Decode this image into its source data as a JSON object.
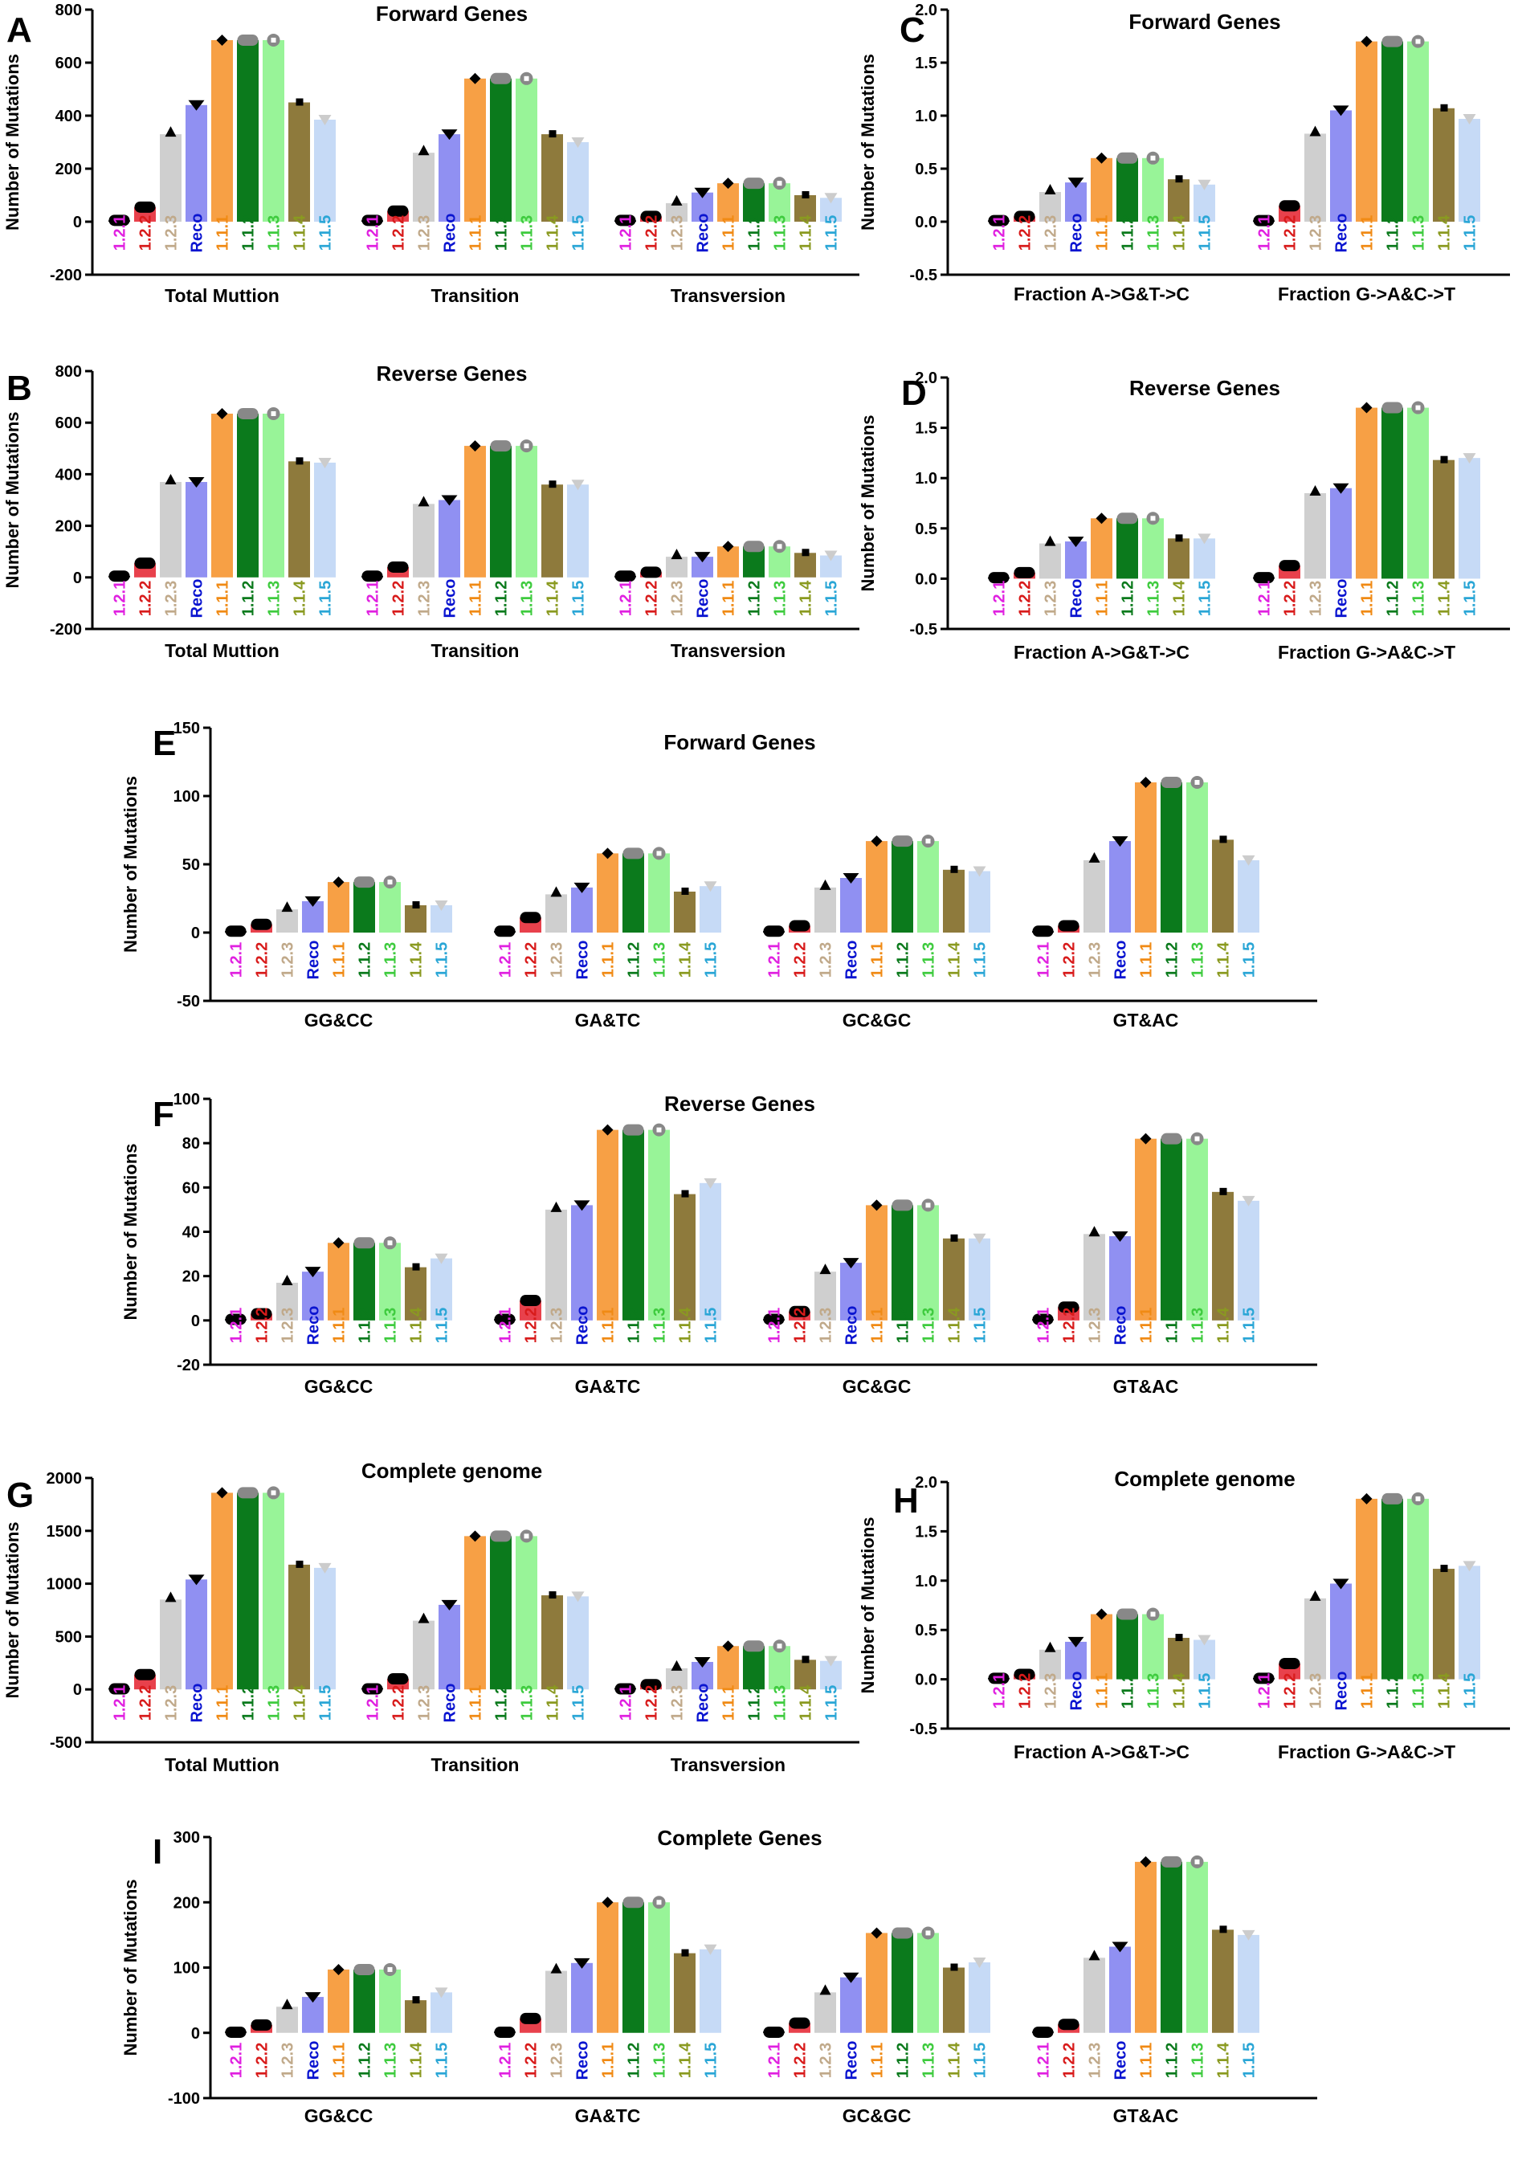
{
  "figure": {
    "category_labels": [
      "1.2.1",
      "1.2.2",
      "1.2.3",
      "Reco",
      "1.1.1",
      "1.1.2",
      "1.1.3",
      "1.1.4",
      "1.1.5"
    ],
    "colors": {
      "bars": [
        "#000000",
        "#e8414c",
        "#cfcfcf",
        "#9090f2",
        "#f7a045",
        "#0b7a1c",
        "#98f498",
        "#8e7a3c",
        "#c6daf6"
      ],
      "labels": [
        "#e020e0",
        "#d81b1b",
        "#c0a98a",
        "#0a14d0",
        "#f08a14",
        "#0b7a1c",
        "#3ecb3e",
        "#8a9a20",
        "#2aa6d6"
      ],
      "markers": [
        "#000000",
        "#000000",
        "#000000",
        "#000000",
        "#000000",
        "#888888",
        "#888888",
        "#dddddd",
        "#cccccc"
      ]
    }
  },
  "chart_data": [
    {
      "panel": "A",
      "type": "bar",
      "title": "Forward Genes",
      "ylabel": "Number of Mutations",
      "ylim": [
        -200,
        800
      ],
      "yticks": [
        "-200",
        "0",
        "200",
        "400",
        "600",
        "800"
      ],
      "groups": [
        "Total Muttion",
        "Transition",
        "Transversion"
      ],
      "series": [
        {
          "name": "Total Muttion",
          "values": [
            5,
            55,
            330,
            440,
            685,
            685,
            685,
            450,
            385
          ]
        },
        {
          "name": "Transition",
          "values": [
            5,
            40,
            260,
            330,
            540,
            540,
            540,
            330,
            300
          ]
        },
        {
          "name": "Transversion",
          "values": [
            5,
            20,
            70,
            110,
            145,
            145,
            145,
            100,
            90
          ]
        }
      ]
    },
    {
      "panel": "C",
      "type": "bar",
      "title": "Forward Genes",
      "ylabel": "Number of Mutations",
      "ylim": [
        -0.5,
        2.0
      ],
      "yticks": [
        "-0.5",
        "0.0",
        "0.5",
        "1.0",
        "1.5",
        "2.0"
      ],
      "groups": [
        "Fraction A->G&T->C",
        "Fraction G->A&C->T"
      ],
      "series": [
        {
          "name": "Fraction A->G&T->C",
          "values": [
            0.01,
            0.05,
            0.28,
            0.37,
            0.6,
            0.6,
            0.6,
            0.4,
            0.35
          ]
        },
        {
          "name": "Fraction G->A&C->T",
          "values": [
            0.01,
            0.15,
            0.83,
            1.05,
            1.7,
            1.7,
            1.7,
            1.07,
            0.97
          ]
        }
      ]
    },
    {
      "panel": "B",
      "type": "bar",
      "title": "Reverse Genes",
      "ylabel": "Number of Mutations",
      "ylim": [
        -200,
        800
      ],
      "yticks": [
        "-200",
        "0",
        "200",
        "400",
        "600",
        "800"
      ],
      "groups": [
        "Total Muttion",
        "Transition",
        "Transversion"
      ],
      "series": [
        {
          "name": "Total Muttion",
          "values": [
            5,
            55,
            370,
            370,
            635,
            635,
            635,
            450,
            445
          ]
        },
        {
          "name": "Transition",
          "values": [
            5,
            40,
            285,
            300,
            510,
            510,
            510,
            360,
            360
          ]
        },
        {
          "name": "Transversion",
          "values": [
            5,
            20,
            80,
            80,
            120,
            120,
            120,
            95,
            85
          ]
        }
      ]
    },
    {
      "panel": "D",
      "type": "bar",
      "title": "Reverse Genes",
      "ylabel": "Number of Mutations",
      "ylim": [
        -0.5,
        2.0
      ],
      "yticks": [
        "-0.5",
        "0.0",
        "0.5",
        "1.0",
        "1.5",
        "2.0"
      ],
      "groups": [
        "Fraction A->G&T->C",
        "Fraction G->A&C->T"
      ],
      "series": [
        {
          "name": "Fraction A->G&T->C",
          "values": [
            0.01,
            0.06,
            0.35,
            0.37,
            0.6,
            0.6,
            0.6,
            0.4,
            0.4
          ]
        },
        {
          "name": "Fraction G->A&C->T",
          "values": [
            0.01,
            0.13,
            0.85,
            0.9,
            1.7,
            1.7,
            1.7,
            1.18,
            1.2
          ]
        }
      ]
    },
    {
      "panel": "E",
      "type": "bar",
      "title": "Forward Genes",
      "ylabel": "Number of Mutations",
      "ylim": [
        -50,
        150
      ],
      "yticks": [
        "-50",
        "0",
        "50",
        "100",
        "150"
      ],
      "groups": [
        "GG&CC",
        "GA&TC",
        "GC&GC",
        "GT&AC"
      ],
      "series": [
        {
          "name": "GG&CC",
          "values": [
            1,
            6,
            17,
            23,
            37,
            37,
            37,
            20,
            20
          ]
        },
        {
          "name": "GA&TC",
          "values": [
            1,
            11,
            28,
            33,
            58,
            58,
            58,
            30,
            34
          ]
        },
        {
          "name": "GC&GC",
          "values": [
            1,
            5,
            33,
            40,
            67,
            67,
            67,
            46,
            45
          ]
        },
        {
          "name": "GT&AC",
          "values": [
            1,
            5,
            53,
            67,
            110,
            110,
            110,
            68,
            53
          ]
        }
      ]
    },
    {
      "panel": "F",
      "type": "bar",
      "title": "Reverse Genes",
      "ylabel": "Number of Mutations",
      "ylim": [
        -20,
        100
      ],
      "yticks": [
        "-20",
        "0",
        "20",
        "40",
        "60",
        "80",
        "100"
      ],
      "groups": [
        "GG&CC",
        "GA&TC",
        "GC&GC",
        "GT&AC"
      ],
      "series": [
        {
          "name": "GG&CC",
          "values": [
            0.5,
            3,
            17,
            22,
            35,
            35,
            35,
            24,
            28
          ]
        },
        {
          "name": "GA&TC",
          "values": [
            0.5,
            9,
            50,
            52,
            86,
            86,
            86,
            57,
            62
          ]
        },
        {
          "name": "GC&GC",
          "values": [
            0.5,
            4,
            22,
            26,
            52,
            52,
            52,
            37,
            37
          ]
        },
        {
          "name": "GT&AC",
          "values": [
            0.5,
            6,
            39,
            38,
            82,
            82,
            82,
            58,
            54
          ]
        }
      ]
    },
    {
      "panel": "G",
      "type": "bar",
      "title": "Complete genome",
      "ylabel": "Number of Mutations",
      "ylim": [
        -500,
        2000
      ],
      "yticks": [
        "-500",
        "0",
        "500",
        "1000",
        "1500",
        "2000"
      ],
      "groups": [
        "Total Muttion",
        "Transition",
        "Transversion"
      ],
      "series": [
        {
          "name": "Total Muttion",
          "values": [
            5,
            140,
            850,
            1040,
            1860,
            1860,
            1860,
            1180,
            1150
          ]
        },
        {
          "name": "Transition",
          "values": [
            5,
            100,
            650,
            800,
            1450,
            1450,
            1450,
            890,
            880
          ]
        },
        {
          "name": "Transversion",
          "values": [
            5,
            45,
            200,
            260,
            410,
            410,
            410,
            280,
            270
          ]
        }
      ]
    },
    {
      "panel": "H",
      "type": "bar",
      "title": "Complete genome",
      "ylabel": "Number of Mutations",
      "ylim": [
        -0.5,
        2.0
      ],
      "yticks": [
        "-0.5",
        "0.0",
        "0.5",
        "1.0",
        "1.5",
        "2.0"
      ],
      "groups": [
        "Fraction A->G&T->C",
        "Fraction G->A&C->T"
      ],
      "series": [
        {
          "name": "Fraction A->G&T->C",
          "values": [
            0.01,
            0.05,
            0.3,
            0.38,
            0.66,
            0.66,
            0.66,
            0.42,
            0.4
          ]
        },
        {
          "name": "Fraction G->A&C->T",
          "values": [
            0.01,
            0.16,
            0.82,
            0.97,
            1.83,
            1.83,
            1.83,
            1.12,
            1.15
          ]
        }
      ]
    },
    {
      "panel": "I",
      "type": "bar",
      "title": "Complete Genes",
      "ylabel": "Number of Mutations",
      "ylim": [
        -100,
        300
      ],
      "yticks": [
        "-100",
        "0",
        "100",
        "200",
        "300"
      ],
      "groups": [
        "GG&CC",
        "GA&TC",
        "GC&GC",
        "GT&AC"
      ],
      "series": [
        {
          "name": "GG&CC",
          "values": [
            1,
            12,
            40,
            55,
            97,
            97,
            97,
            50,
            62
          ]
        },
        {
          "name": "GA&TC",
          "values": [
            1,
            22,
            95,
            107,
            200,
            200,
            200,
            122,
            128
          ]
        },
        {
          "name": "GC&GC",
          "values": [
            1,
            15,
            62,
            85,
            153,
            153,
            153,
            100,
            108
          ]
        },
        {
          "name": "GT&AC",
          "values": [
            1,
            13,
            115,
            132,
            262,
            262,
            262,
            158,
            150
          ]
        }
      ]
    }
  ]
}
